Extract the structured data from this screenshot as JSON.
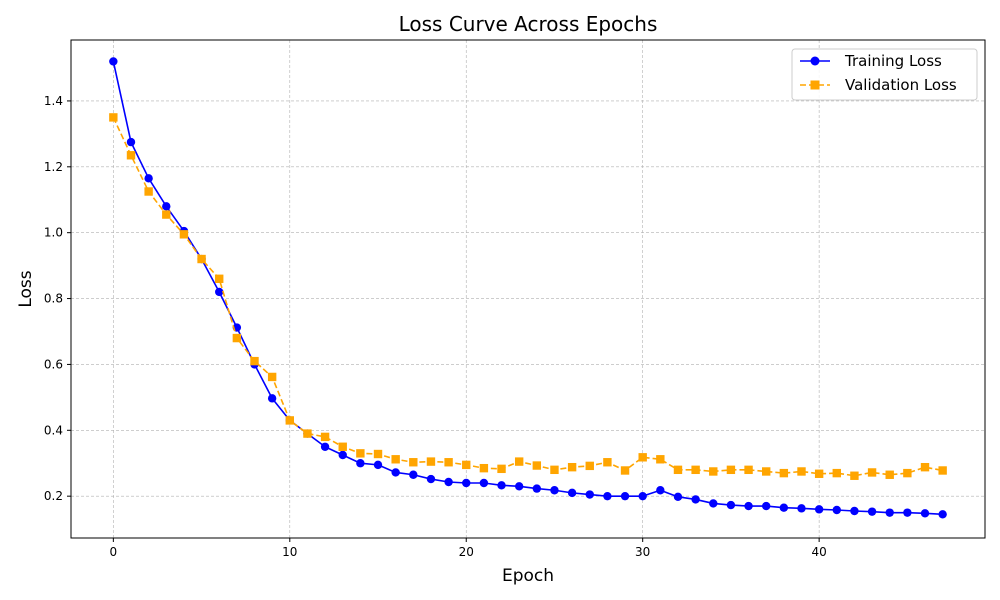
{
  "chart_data": {
    "type": "line",
    "title": "Loss Curve Across Epochs",
    "xlabel": "Epoch",
    "ylabel": "Loss",
    "xlim": [
      -2.4,
      49.4
    ],
    "ylim": [
      0.073,
      1.585
    ],
    "xticks": [
      0,
      10,
      20,
      30,
      40
    ],
    "yticks": [
      0.2,
      0.4,
      0.6,
      0.8,
      1.0,
      1.2,
      1.4
    ],
    "ytick_labels": [
      "0.2",
      "0.4",
      "0.6",
      "0.8",
      "1.0",
      "1.2",
      "1.4"
    ],
    "grid": true,
    "legend_position": "top-right",
    "x": [
      0,
      1,
      2,
      3,
      4,
      5,
      6,
      7,
      8,
      9,
      10,
      11,
      12,
      13,
      14,
      15,
      16,
      17,
      18,
      19,
      20,
      21,
      22,
      23,
      24,
      25,
      26,
      27,
      28,
      29,
      30,
      31,
      32,
      33,
      34,
      35,
      36,
      37,
      38,
      39,
      40,
      41,
      42,
      43,
      44,
      45,
      46,
      47
    ],
    "series": [
      {
        "name": "Training Loss",
        "color": "#0000ff",
        "marker": "circle",
        "linestyle": "solid",
        "values": [
          1.52,
          1.275,
          1.165,
          1.08,
          1.005,
          0.92,
          0.82,
          0.712,
          0.6,
          0.497,
          0.43,
          0.39,
          0.35,
          0.325,
          0.3,
          0.295,
          0.272,
          0.265,
          0.252,
          0.243,
          0.24,
          0.24,
          0.233,
          0.23,
          0.223,
          0.218,
          0.21,
          0.205,
          0.2,
          0.2,
          0.2,
          0.218,
          0.198,
          0.19,
          0.178,
          0.173,
          0.17,
          0.17,
          0.165,
          0.163,
          0.16,
          0.158,
          0.155,
          0.153,
          0.15,
          0.15,
          0.148,
          0.145
        ]
      },
      {
        "name": "Validation Loss",
        "color": "#ffa500",
        "marker": "square",
        "linestyle": "dashed",
        "values": [
          1.35,
          1.235,
          1.125,
          1.055,
          0.995,
          0.92,
          0.86,
          0.68,
          0.61,
          0.562,
          0.43,
          0.39,
          0.38,
          0.35,
          0.33,
          0.328,
          0.312,
          0.303,
          0.305,
          0.303,
          0.295,
          0.285,
          0.283,
          0.305,
          0.293,
          0.28,
          0.288,
          0.292,
          0.303,
          0.278,
          0.318,
          0.312,
          0.28,
          0.28,
          0.275,
          0.28,
          0.28,
          0.275,
          0.27,
          0.275,
          0.268,
          0.27,
          0.262,
          0.272,
          0.265,
          0.27,
          0.288,
          0.278
        ]
      }
    ]
  }
}
